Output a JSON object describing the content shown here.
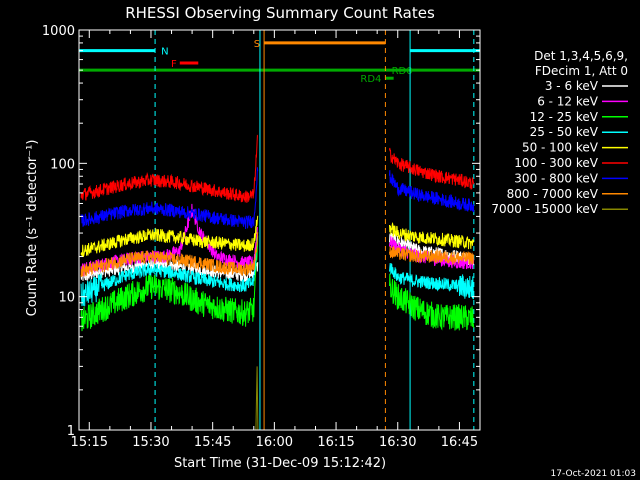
{
  "chart_data": {
    "type": "line",
    "title": "RHESSI Observing Summary Count Rates",
    "xlabel": "Start Time (31-Dec-09 15:12:42)",
    "ylabel": "Count Rate (s⁻¹ detector⁻¹)",
    "yscale": "log",
    "ylim": [
      1,
      1000
    ],
    "xlim_minutes": [
      12.5,
      110
    ],
    "x_tick_labels": [
      "15:15",
      "15:30",
      "15:45",
      "16:00",
      "16:15",
      "16:30",
      "16:45"
    ],
    "x_tick_minutes": [
      15,
      30,
      45,
      60,
      75,
      90,
      105
    ],
    "y_tick_labels": [
      "1",
      "10",
      "100",
      "1000"
    ],
    "y_tick_values": [
      1,
      10,
      100,
      1000
    ],
    "timestamp": "17-Oct-2021 01:03",
    "legend": {
      "header_lines": [
        "Det 1,3,4,5,6,9,",
        "FDecim 1, Att 0"
      ],
      "placement": "right"
    },
    "flags": [
      {
        "label": "N",
        "color": "#00ffff",
        "segments": [
          [
            12.5,
            31.0
          ],
          [
            93.0,
            110.0
          ]
        ],
        "level": 700
      },
      {
        "label": "F",
        "color": "#ff0000",
        "segments": [
          [
            37.0,
            41.5
          ]
        ],
        "level": 565
      },
      {
        "label": "S",
        "color": "#ff8800",
        "segments": [
          [
            57.5,
            87.0
          ]
        ],
        "level": 800
      },
      {
        "label": "RD4",
        "color": "#00aa00",
        "segments": [
          [
            87.0,
            89.0
          ]
        ],
        "level": 435
      },
      {
        "label": "RD0",
        "color": "#00aa00",
        "segments": [
          [
            12.5,
            110.0
          ]
        ],
        "level": 500
      }
    ],
    "vlines": [
      {
        "minute": 31.0,
        "color": "#00ffff",
        "style": "dash"
      },
      {
        "minute": 56.5,
        "color": "#00ffff",
        "style": "solid"
      },
      {
        "minute": 57.5,
        "color": "#ff8800",
        "style": "solid"
      },
      {
        "minute": 87.0,
        "color": "#ff8800",
        "style": "dash"
      },
      {
        "minute": 93.0,
        "color": "#00ffff",
        "style": "solid"
      },
      {
        "minute": 108.5,
        "color": "#00ffff",
        "style": "dash"
      }
    ],
    "gap": [
      56.5,
      88.0
    ],
    "series": [
      {
        "name": "3 - 6 keV",
        "color": "#ffffff",
        "before": [
          [
            13,
            14
          ],
          [
            18,
            15.5
          ],
          [
            24,
            16.5
          ],
          [
            30,
            17.5
          ],
          [
            36,
            17
          ],
          [
            42,
            16
          ],
          [
            48,
            15
          ],
          [
            53,
            14.5
          ],
          [
            55,
            15
          ],
          [
            56,
            17
          ]
        ],
        "after": [
          [
            88,
            28
          ],
          [
            90,
            26
          ],
          [
            95,
            22
          ],
          [
            100,
            21
          ],
          [
            105,
            20
          ],
          [
            108.5,
            19
          ]
        ]
      },
      {
        "name": "6 - 12 keV",
        "color": "#ff00ff",
        "before": [
          [
            13,
            16
          ],
          [
            20,
            18
          ],
          [
            28,
            20
          ],
          [
            33,
            20
          ],
          [
            37,
            22
          ],
          [
            40,
            45
          ],
          [
            42,
            30
          ],
          [
            46,
            20
          ],
          [
            52,
            18
          ],
          [
            55,
            18
          ],
          [
            56,
            35
          ]
        ],
        "after": [
          [
            88,
            26
          ],
          [
            90,
            23
          ],
          [
            95,
            20
          ],
          [
            100,
            19
          ],
          [
            105,
            18
          ],
          [
            108.5,
            18
          ]
        ]
      },
      {
        "name": "12 - 25 keV",
        "color": "#00ff00",
        "before": [
          [
            13,
            6.5
          ],
          [
            18,
            8
          ],
          [
            24,
            10
          ],
          [
            30,
            12
          ],
          [
            36,
            11
          ],
          [
            42,
            9
          ],
          [
            48,
            8
          ],
          [
            53,
            7.5
          ],
          [
            55,
            8
          ],
          [
            56,
            30
          ]
        ],
        "after": [
          [
            88,
            12
          ],
          [
            90,
            10
          ],
          [
            95,
            8
          ],
          [
            100,
            7
          ],
          [
            105,
            7
          ],
          [
            108.5,
            6.8
          ]
        ]
      },
      {
        "name": "25 - 50 keV",
        "color": "#00ffff",
        "before": [
          [
            13,
            10
          ],
          [
            18,
            12
          ],
          [
            24,
            14.5
          ],
          [
            30,
            16
          ],
          [
            36,
            15
          ],
          [
            42,
            13.5
          ],
          [
            48,
            12.5
          ],
          [
            53,
            12
          ],
          [
            55,
            13
          ],
          [
            56,
            30
          ]
        ],
        "after": [
          [
            88,
            17
          ],
          [
            90,
            14
          ],
          [
            95,
            13
          ],
          [
            100,
            12.5
          ],
          [
            105,
            12
          ],
          [
            108.5,
            11.5
          ]
        ]
      },
      {
        "name": "50 - 100 keV",
        "color": "#ffff00",
        "before": [
          [
            13,
            22
          ],
          [
            18,
            24
          ],
          [
            24,
            27
          ],
          [
            30,
            29
          ],
          [
            36,
            28
          ],
          [
            42,
            26
          ],
          [
            48,
            25
          ],
          [
            53,
            24
          ],
          [
            55,
            25
          ],
          [
            56,
            40
          ]
        ],
        "after": [
          [
            88,
            33
          ],
          [
            90,
            30
          ],
          [
            95,
            28
          ],
          [
            100,
            27
          ],
          [
            105,
            26
          ],
          [
            108.5,
            25
          ]
        ]
      },
      {
        "name": "100 - 300 keV",
        "color": "#ff0000",
        "before": [
          [
            13,
            58
          ],
          [
            18,
            63
          ],
          [
            24,
            70
          ],
          [
            30,
            75
          ],
          [
            36,
            72
          ],
          [
            42,
            66
          ],
          [
            48,
            60
          ],
          [
            53,
            56
          ],
          [
            55,
            58
          ],
          [
            56,
            170
          ]
        ],
        "after": [
          [
            88,
            118
          ],
          [
            90,
            100
          ],
          [
            95,
            88
          ],
          [
            100,
            80
          ],
          [
            105,
            75
          ],
          [
            108.5,
            70
          ]
        ]
      },
      {
        "name": "300 - 800 keV",
        "color": "#0000ff",
        "before": [
          [
            13,
            37
          ],
          [
            18,
            40
          ],
          [
            24,
            44
          ],
          [
            30,
            46
          ],
          [
            36,
            44
          ],
          [
            42,
            41
          ],
          [
            48,
            38
          ],
          [
            53,
            36
          ],
          [
            55,
            37
          ],
          [
            56,
            95
          ]
        ],
        "after": [
          [
            88,
            80
          ],
          [
            90,
            65
          ],
          [
            95,
            58
          ],
          [
            100,
            54
          ],
          [
            105,
            50
          ],
          [
            108.5,
            48
          ]
        ]
      },
      {
        "name": "800 - 7000 keV",
        "color": "#ff8800",
        "before": [
          [
            13,
            15.5
          ],
          [
            18,
            17
          ],
          [
            24,
            19
          ],
          [
            30,
            20
          ],
          [
            36,
            19
          ],
          [
            42,
            18
          ],
          [
            48,
            16.5
          ],
          [
            53,
            16
          ],
          [
            55,
            17
          ],
          [
            56,
            28
          ]
        ],
        "after": [
          [
            88,
            22
          ],
          [
            90,
            21
          ],
          [
            95,
            20
          ],
          [
            100,
            20
          ],
          [
            105,
            19.5
          ],
          [
            108.5,
            19.5
          ]
        ]
      },
      {
        "name": "7000 - 15000 keV",
        "color": "#888800",
        "before": [
          [
            55.5,
            1
          ],
          [
            55.8,
            3
          ],
          [
            56,
            1
          ]
        ],
        "after": []
      }
    ]
  }
}
